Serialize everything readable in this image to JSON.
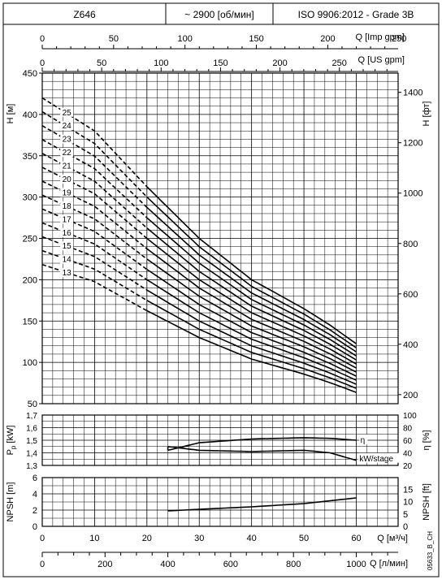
{
  "header": {
    "model": "Z646",
    "speed": "~ 2900 [об/мин]",
    "standard": "ISO 9906:2012 - Grade 3B"
  },
  "axes": {
    "imp_gpm_label": "Q [Imp gpm]",
    "imp_gpm_ticks": [
      "0",
      "50",
      "100",
      "150",
      "200",
      "250"
    ],
    "us_gpm_label": "Q [US gpm]",
    "us_gpm_ticks": [
      "0",
      "50",
      "100",
      "150",
      "200",
      "250"
    ],
    "head_m_label": "H [м]",
    "head_m_ticks": [
      "50",
      "100",
      "150",
      "200",
      "250",
      "300",
      "350",
      "400",
      "450"
    ],
    "head_ft_label": "H [фт]",
    "head_ft_ticks": [
      "200",
      "400",
      "600",
      "800",
      "1000",
      "1200",
      "1400"
    ],
    "power_label_main": "P",
    "power_label_sub": "p",
    "power_label_unit": "[kW]",
    "power_ticks": [
      "1,3",
      "1,4",
      "1,5",
      "1,6",
      "1,7"
    ],
    "eff_label": "η [%]",
    "eff_ticks": [
      "20",
      "40",
      "60",
      "80",
      "100"
    ],
    "npsh_m_label": "NPSH [m]",
    "npsh_m_ticks": [
      "0",
      "2",
      "4",
      "6"
    ],
    "npsh_ft_label": "NPSH [ft]",
    "npsh_ft_ticks": [
      "0",
      "5",
      "10",
      "15"
    ],
    "q_m3h_label": "Q [м³/ч]",
    "q_m3h_ticks": [
      "0",
      "10",
      "20",
      "30",
      "40",
      "50",
      "60"
    ],
    "q_lmin_label": "Q [л/мин]",
    "q_lmin_ticks": [
      "0",
      "200",
      "400",
      "600",
      "800",
      "1000"
    ],
    "eff_curve_label": "η",
    "power_curve_label": "kW/stage",
    "drawing_code": "05633_B_CH"
  },
  "chart_data": [
    {
      "type": "line",
      "name": "head",
      "x_unit": "m³/h",
      "y_unit": "m",
      "xlim": [
        0,
        68
      ],
      "ylim": [
        50,
        450
      ],
      "grid": true,
      "stage_labels": [
        "25",
        "24",
        "23",
        "22",
        "21",
        "20",
        "19",
        "18",
        "17",
        "16",
        "15",
        "14",
        "13"
      ],
      "recommended_range_start": 20,
      "stages_min": 13,
      "stages_max": 25,
      "head_per_stage": [
        [
          0,
          16.8
        ],
        [
          10,
          15.2
        ],
        [
          20,
          12.5
        ],
        [
          30,
          10.0
        ],
        [
          40,
          8.0
        ],
        [
          50,
          6.6
        ],
        [
          55,
          5.8
        ],
        [
          60,
          4.9
        ]
      ]
    },
    {
      "type": "line",
      "name": "power_efficiency",
      "xlim": [
        0,
        68
      ],
      "power_ylim": [
        1.3,
        1.7
      ],
      "eff_ylim": [
        20,
        100
      ],
      "efficiency_percent": [
        [
          24,
          44
        ],
        [
          30,
          56
        ],
        [
          40,
          62
        ],
        [
          50,
          64
        ],
        [
          55,
          63
        ],
        [
          60,
          60
        ]
      ],
      "power_kw_per_stage": [
        [
          24,
          1.45
        ],
        [
          30,
          1.42
        ],
        [
          40,
          1.41
        ],
        [
          50,
          1.42
        ],
        [
          55,
          1.4
        ],
        [
          60,
          1.34
        ]
      ]
    },
    {
      "type": "line",
      "name": "npsh",
      "xlim": [
        0,
        68
      ],
      "ylim": [
        0,
        6
      ],
      "npsh_m": [
        [
          24,
          1.9
        ],
        [
          30,
          2.1
        ],
        [
          40,
          2.4
        ],
        [
          50,
          2.8
        ],
        [
          60,
          3.5
        ]
      ]
    }
  ]
}
